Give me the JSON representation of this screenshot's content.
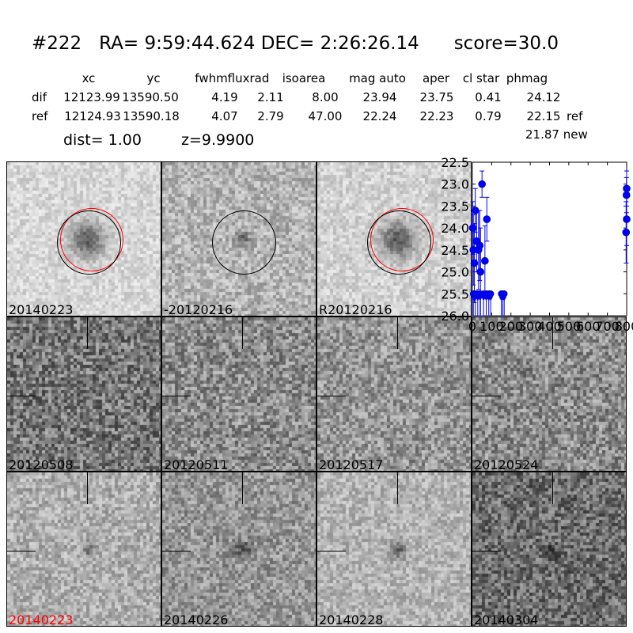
{
  "header": {
    "id": "#222",
    "ra_label": "RA=",
    "ra": "9:59:44.624",
    "dec_label": "DEC=",
    "dec": "2:26:26.14",
    "score": "score=30.0"
  },
  "table": {
    "columns": [
      "xc",
      "yc",
      "fwhm",
      "fluxrad",
      "isoarea",
      "mag auto",
      "aper",
      "cl star",
      "phmag"
    ],
    "rows": [
      {
        "label": "dif",
        "values": [
          "12123.99",
          "13590.50",
          "4.19",
          "2.11",
          "8.00",
          "23.94",
          "23.75",
          "0.41",
          "24.12"
        ],
        "note": ""
      },
      {
        "label": "ref",
        "values": [
          "12124.93",
          "13590.18",
          "4.07",
          "2.79",
          "47.00",
          "22.24",
          "22.23",
          "0.79",
          "22.15"
        ],
        "note": "ref"
      }
    ],
    "new_phmag": "21.87",
    "new_label": "new"
  },
  "dist": "dist=  1.00",
  "z": "z=9.9900",
  "tiles": [
    {
      "label": "20140223",
      "color": "#000000"
    },
    {
      "label": "-20120216",
      "color": "#000000"
    },
    {
      "label": "R20120216",
      "color": "#000000"
    },
    {
      "label": "20120508",
      "color": "#000000"
    },
    {
      "label": "20120511",
      "color": "#000000"
    },
    {
      "label": "20120517",
      "color": "#000000"
    },
    {
      "label": "20120524",
      "color": "#000000"
    },
    {
      "label": "20140223",
      "color": "#ff0000"
    },
    {
      "label": "20140226",
      "color": "#000000"
    },
    {
      "label": "20140228",
      "color": "#000000"
    },
    {
      "label": "20140304",
      "color": "#000000"
    }
  ],
  "chart_data": {
    "type": "scatter",
    "xlim": [
      0,
      800
    ],
    "ylim": [
      26.0,
      22.5
    ],
    "y_inverted": true,
    "xticks": [
      "0",
      "100",
      "200",
      "300",
      "400",
      "500",
      "600",
      "700",
      "800"
    ],
    "yticks": [
      "22.5",
      "23.0",
      "23.5",
      "24.0",
      "24.5",
      "25.0",
      "25.5",
      "26.0"
    ],
    "color": "#0000ff",
    "detections": [
      {
        "x": 2,
        "y": 24.0,
        "err": 0.6
      },
      {
        "x": 5,
        "y": 24.5,
        "err": 0.8
      },
      {
        "x": 10,
        "y": 24.8,
        "err": 0.9
      },
      {
        "x": 15,
        "y": 23.6,
        "err": 0.5
      },
      {
        "x": 22,
        "y": 24.3,
        "err": 0.7
      },
      {
        "x": 32,
        "y": 24.5,
        "err": 0.9
      },
      {
        "x": 38,
        "y": 24.4,
        "err": 0.8
      },
      {
        "x": 42,
        "y": 25.0,
        "err": 1.0
      },
      {
        "x": 50,
        "y": 23.0,
        "err": 0.3
      },
      {
        "x": 65,
        "y": 24.75,
        "err": 0.8
      },
      {
        "x": 75,
        "y": 23.8,
        "err": 0.5
      },
      {
        "x": 797,
        "y": 24.1,
        "err": 0.7
      },
      {
        "x": 799,
        "y": 23.25,
        "err": 0.4
      },
      {
        "x": 803,
        "y": 23.1,
        "err": 0.4
      },
      {
        "x": 801,
        "y": 23.8,
        "err": 0.6
      }
    ],
    "upper_limits": [
      {
        "x": 5,
        "y": 25.5
      },
      {
        "x": 15,
        "y": 25.5
      },
      {
        "x": 28,
        "y": 25.5
      },
      {
        "x": 40,
        "y": 25.5
      },
      {
        "x": 58,
        "y": 25.5
      },
      {
        "x": 72,
        "y": 25.5
      },
      {
        "x": 85,
        "y": 25.5
      },
      {
        "x": 95,
        "y": 25.5
      },
      {
        "x": 150,
        "y": 25.5
      },
      {
        "x": 158,
        "y": 25.5
      },
      {
        "x": 165,
        "y": 25.5
      }
    ]
  }
}
